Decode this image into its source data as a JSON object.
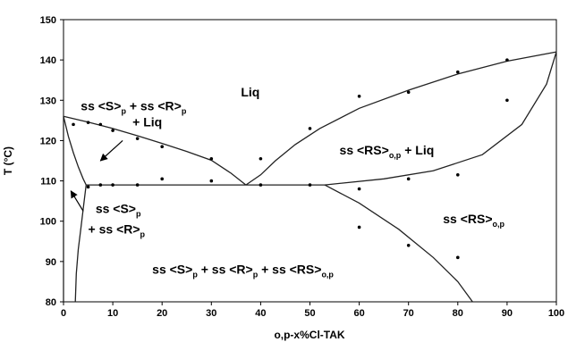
{
  "chart_data": {
    "type": "scatter",
    "title": "",
    "xlabel": "o,p-x%Cl-TAK",
    "ylabel": "T (°C)",
    "xlim": [
      0,
      100
    ],
    "ylim": [
      80,
      150
    ],
    "xticks": [
      0,
      10,
      20,
      30,
      40,
      50,
      60,
      70,
      80,
      90,
      100
    ],
    "yticks": [
      80,
      90,
      100,
      110,
      120,
      130,
      140,
      150
    ],
    "grid": false,
    "legend": "none",
    "series": [
      {
        "points": [
          [
            2,
            124
          ],
          [
            5,
            124.5
          ],
          [
            7.5,
            124
          ],
          [
            10,
            122.5
          ],
          [
            15,
            120.5
          ],
          [
            20,
            118.5
          ],
          [
            30,
            115.5
          ],
          [
            40,
            115.5
          ],
          [
            50,
            123
          ],
          [
            60,
            131
          ],
          [
            70,
            132
          ],
          [
            80,
            137
          ],
          [
            90,
            140
          ],
          [
            90,
            130
          ],
          [
            5,
            108.5
          ],
          [
            7.5,
            109
          ],
          [
            10,
            109
          ],
          [
            15,
            109
          ],
          [
            20,
            110.5
          ],
          [
            30,
            110
          ],
          [
            40,
            109
          ],
          [
            50,
            109
          ],
          [
            60,
            108
          ],
          [
            70,
            110.5
          ],
          [
            80,
            111.5
          ],
          [
            60,
            98.5
          ],
          [
            70,
            94
          ],
          [
            80,
            91
          ]
        ]
      }
    ],
    "phase_boundaries": [
      {
        "points": [
          [
            0,
            126
          ],
          [
            5,
            124.6
          ],
          [
            10,
            123
          ],
          [
            15,
            121.2
          ],
          [
            20,
            119.3
          ],
          [
            25,
            117.3
          ],
          [
            30,
            115.1
          ],
          [
            34,
            111.9
          ],
          [
            37,
            109
          ]
        ]
      },
      {
        "points": [
          [
            0,
            126
          ],
          [
            1,
            121
          ],
          [
            2,
            117
          ],
          [
            3,
            113.5
          ],
          [
            4,
            110.5
          ],
          [
            4.6,
            109
          ]
        ]
      },
      {
        "points": [
          [
            4.6,
            109
          ],
          [
            4.2,
            105
          ],
          [
            3.5,
            98
          ],
          [
            3,
            93
          ],
          [
            2.6,
            87
          ],
          [
            2.4,
            80
          ]
        ]
      },
      {
        "points": [
          [
            0,
            126
          ],
          [
            0,
            80
          ]
        ]
      },
      {
        "points": [
          [
            4.6,
            109
          ],
          [
            53,
            109
          ]
        ]
      },
      {
        "points": [
          [
            37,
            109
          ],
          [
            40,
            111.5
          ],
          [
            43,
            115
          ],
          [
            47,
            119
          ],
          [
            52,
            123
          ],
          [
            60,
            128
          ],
          [
            70,
            132.5
          ],
          [
            80,
            136.5
          ],
          [
            90,
            139.7
          ],
          [
            100,
            142
          ]
        ]
      },
      {
        "points": [
          [
            53,
            109
          ],
          [
            65,
            110.5
          ],
          [
            75,
            112.5
          ],
          [
            85,
            116.5
          ],
          [
            93,
            124
          ],
          [
            98,
            134
          ],
          [
            100,
            142
          ]
        ]
      },
      {
        "points": [
          [
            53,
            109
          ],
          [
            60,
            104.5
          ],
          [
            68,
            98
          ],
          [
            75,
            91
          ],
          [
            80,
            85
          ],
          [
            83,
            80
          ]
        ]
      }
    ],
    "arrows": [
      {
        "from": [
          12,
          120
        ],
        "to": [
          7.5,
          115
        ]
      },
      {
        "from": [
          4,
          102.5
        ],
        "to": [
          1.5,
          107.5
        ]
      }
    ],
    "annotations": [
      {
        "at": [
          36,
          131
        ],
        "parts": [
          [
            "Liq",
            ""
          ]
        ]
      },
      {
        "at": [
          3.5,
          127.5
        ],
        "parts": [
          [
            "ss <S>",
            ""
          ],
          [
            "p",
            "sub"
          ],
          [
            " + ss <R>",
            ""
          ],
          [
            "p",
            "sub"
          ]
        ]
      },
      {
        "at": [
          14,
          123.5
        ],
        "parts": [
          [
            "+ Liq",
            ""
          ]
        ]
      },
      {
        "at": [
          56,
          116.5
        ],
        "parts": [
          [
            "ss <RS>",
            ""
          ],
          [
            "o,p",
            "sub"
          ],
          [
            " + Liq",
            ""
          ]
        ]
      },
      {
        "at": [
          6.5,
          102
        ],
        "parts": [
          [
            "ss <S>",
            ""
          ],
          [
            "p",
            "sub"
          ]
        ]
      },
      {
        "at": [
          5,
          97
        ],
        "parts": [
          [
            "+ ss <R>",
            ""
          ],
          [
            "p",
            "sub"
          ]
        ]
      },
      {
        "at": [
          77,
          99.5
        ],
        "parts": [
          [
            "ss <RS>",
            ""
          ],
          [
            "o,p",
            "sub"
          ]
        ]
      },
      {
        "at": [
          18,
          87
        ],
        "parts": [
          [
            "ss <S>",
            ""
          ],
          [
            "p",
            "sub"
          ],
          [
            " + ss <R>",
            ""
          ],
          [
            "p",
            "sub"
          ],
          [
            " + ss <RS>",
            ""
          ],
          [
            "o,p",
            "sub"
          ]
        ]
      }
    ]
  }
}
